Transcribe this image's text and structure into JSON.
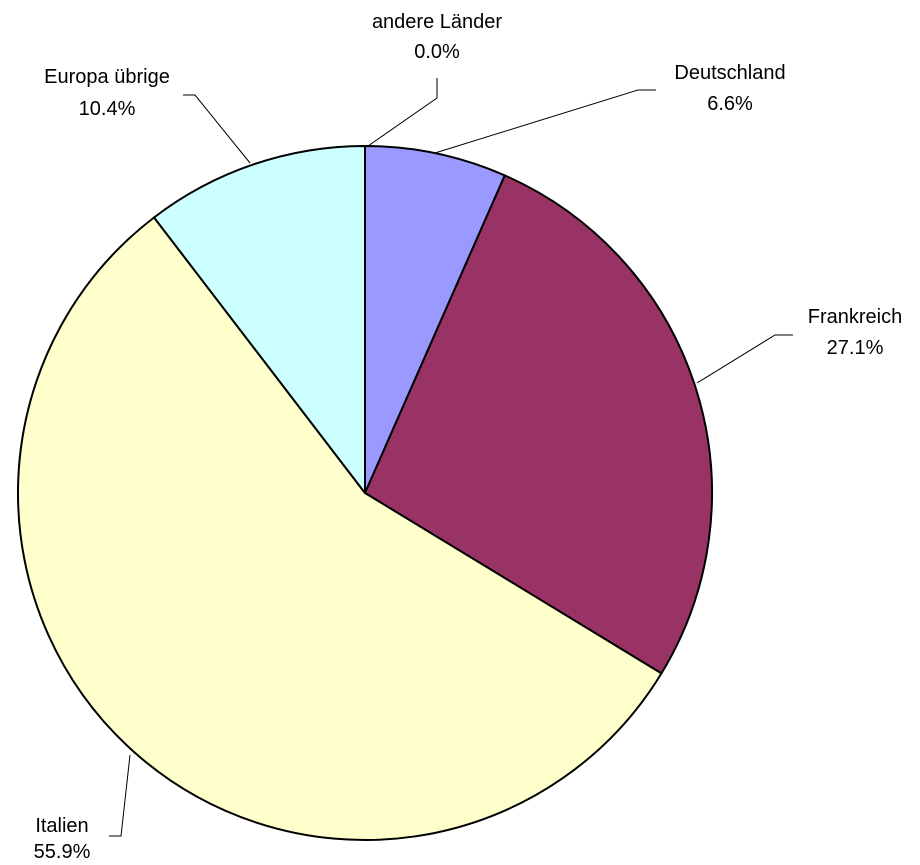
{
  "chart_data": {
    "type": "pie",
    "title": "",
    "start_angle_deg": 0,
    "direction": "clockwise",
    "slices": [
      {
        "label": "Deutschland",
        "value": 6.6,
        "value_label": "6.6%",
        "color": "#9999ff"
      },
      {
        "label": "Frankreich",
        "value": 27.1,
        "value_label": "27.1%",
        "color": "#993366"
      },
      {
        "label": "Italien",
        "value": 55.9,
        "value_label": "55.9%",
        "color": "#ffffcc"
      },
      {
        "label": "Europa übrige",
        "value": 10.4,
        "value_label": "10.4%",
        "color": "#ccffff"
      },
      {
        "label": "andere Länder",
        "value": 0.0,
        "value_label": "0.0%",
        "color": "#ffffff"
      }
    ]
  }
}
